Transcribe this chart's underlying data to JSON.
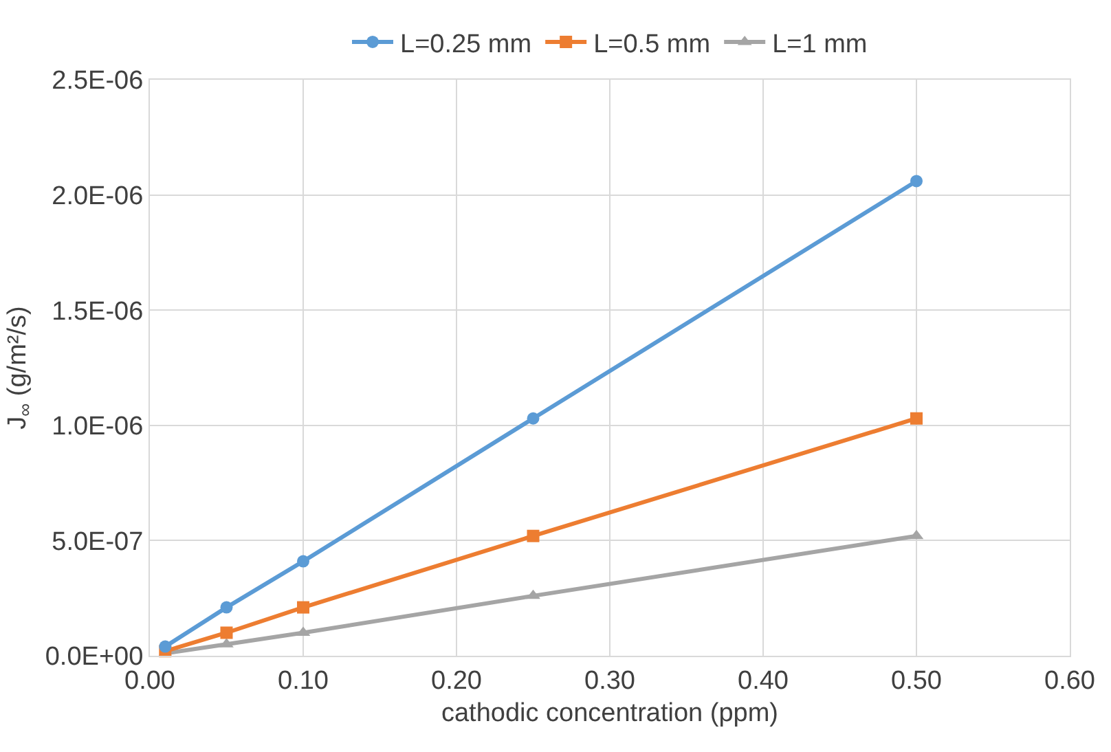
{
  "chart_data": {
    "type": "line",
    "xlabel": "cathodic concentration (ppm)",
    "ylabel": "J$_{∞}$ (g/m²/s)",
    "x": [
      0.01,
      0.05,
      0.1,
      0.25,
      0.5
    ],
    "series": [
      {
        "name": "L=0.25 mm",
        "color": "#5b9bd5",
        "marker": "circle",
        "values": [
          4e-08,
          2.1e-07,
          4.1e-07,
          1.03e-06,
          2.06e-06
        ]
      },
      {
        "name": "L=0.5 mm",
        "color": "#ed7d31",
        "marker": "square",
        "values": [
          2e-08,
          1e-07,
          2.1e-07,
          5.2e-07,
          1.03e-06
        ]
      },
      {
        "name": "L=1 mm",
        "color": "#a5a5a5",
        "marker": "triangle",
        "values": [
          1e-08,
          5e-08,
          1e-07,
          2.6e-07,
          5.2e-07
        ]
      }
    ],
    "xlim": [
      0,
      0.6
    ],
    "xticks": [
      {
        "value": 0,
        "label": "0.00"
      },
      {
        "value": 0.1,
        "label": "0.10"
      },
      {
        "value": 0.2,
        "label": "0.20"
      },
      {
        "value": 0.3,
        "label": "0.30"
      },
      {
        "value": 0.4,
        "label": "0.40"
      },
      {
        "value": 0.5,
        "label": "0.50"
      },
      {
        "value": 0.6,
        "label": "0.60"
      }
    ],
    "ylim": [
      0,
      2.5e-06
    ],
    "yticks": [
      {
        "value": 0,
        "label": "0.0E+00"
      },
      {
        "value": 5e-07,
        "label": "5.0E-07"
      },
      {
        "value": 1e-06,
        "label": "1.0E-06"
      },
      {
        "value": 1.5e-06,
        "label": "1.5E-06"
      },
      {
        "value": 2e-06,
        "label": "2.0E-06"
      },
      {
        "value": 2.5e-06,
        "label": "2.5E-06"
      }
    ],
    "grid": true,
    "legend": "top",
    "line_style": "solid"
  }
}
